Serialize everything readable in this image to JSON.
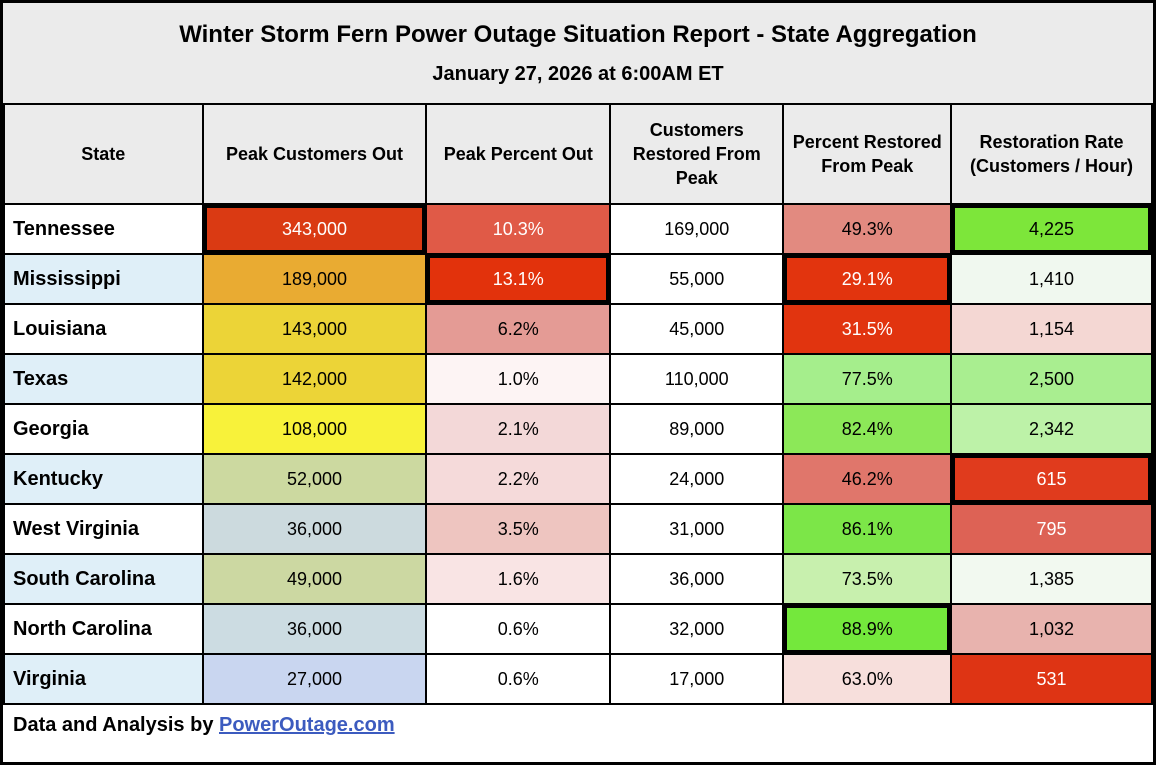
{
  "title": "Winter Storm Fern Power Outage Situation Report - State Aggregation",
  "subtitle": "January 27, 2026 at 6:00AM ET",
  "footer": {
    "prefix": "Data and Analysis by ",
    "link_text": "PowerOutage.com"
  },
  "colors": {
    "header_bg": "#ebebeb",
    "border": "#000000",
    "alt_state_row_bg": "#dfeff8",
    "link_blue": "#3c5bbf"
  },
  "chart_data": {
    "type": "table",
    "title": "Winter Storm Fern Power Outage Situation Report - State Aggregation",
    "subtitle": "January 27, 2026 at 6:00AM ET",
    "columns": [
      "State",
      "Peak Customers Out",
      "Peak Percent Out",
      "Customers Restored From Peak",
      "Percent Restored From Peak",
      "Restoration Rate (Customers / Hour)"
    ],
    "rows": [
      {
        "state": "Tennessee",
        "state_bg": "#ffffff",
        "cells": [
          {
            "v": "343,000",
            "bg": "#da3a13",
            "fg": "#ffffff",
            "hl": true
          },
          {
            "v": "10.3%",
            "bg": "#e05a47",
            "fg": "#ffffff",
            "hl": false
          },
          {
            "v": "169,000",
            "bg": "#ffffff",
            "fg": "#000000",
            "hl": false
          },
          {
            "v": "49.3%",
            "bg": "#e28a80",
            "fg": "#000000",
            "hl": false
          },
          {
            "v": "4,225",
            "bg": "#7de63a",
            "fg": "#000000",
            "hl": true
          }
        ]
      },
      {
        "state": "Mississippi",
        "state_bg": "#dfeff8",
        "cells": [
          {
            "v": "189,000",
            "bg": "#e9ab32",
            "fg": "#000000",
            "hl": false
          },
          {
            "v": "13.1%",
            "bg": "#e2320c",
            "fg": "#ffffff",
            "hl": true
          },
          {
            "v": "55,000",
            "bg": "#ffffff",
            "fg": "#000000",
            "hl": false
          },
          {
            "v": "29.1%",
            "bg": "#e2340e",
            "fg": "#ffffff",
            "hl": true
          },
          {
            "v": "1,410",
            "bg": "#f0f8ef",
            "fg": "#000000",
            "hl": false
          }
        ]
      },
      {
        "state": "Louisiana",
        "state_bg": "#ffffff",
        "cells": [
          {
            "v": "143,000",
            "bg": "#ecd437",
            "fg": "#000000",
            "hl": false
          },
          {
            "v": "6.2%",
            "bg": "#e49b95",
            "fg": "#000000",
            "hl": false
          },
          {
            "v": "45,000",
            "bg": "#ffffff",
            "fg": "#000000",
            "hl": false
          },
          {
            "v": "31.5%",
            "bg": "#e1340f",
            "fg": "#ffffff",
            "hl": false
          },
          {
            "v": "1,154",
            "bg": "#f4d7d3",
            "fg": "#000000",
            "hl": false
          }
        ]
      },
      {
        "state": "Texas",
        "state_bg": "#dfeff8",
        "cells": [
          {
            "v": "142,000",
            "bg": "#ecd437",
            "fg": "#000000",
            "hl": false
          },
          {
            "v": "1.0%",
            "bg": "#fdf4f4",
            "fg": "#000000",
            "hl": false
          },
          {
            "v": "110,000",
            "bg": "#ffffff",
            "fg": "#000000",
            "hl": false
          },
          {
            "v": "77.5%",
            "bg": "#a5ee8c",
            "fg": "#000000",
            "hl": false
          },
          {
            "v": "2,500",
            "bg": "#a9ee90",
            "fg": "#000000",
            "hl": false
          }
        ]
      },
      {
        "state": "Georgia",
        "state_bg": "#ffffff",
        "cells": [
          {
            "v": "108,000",
            "bg": "#f8f23a",
            "fg": "#000000",
            "hl": false
          },
          {
            "v": "2.1%",
            "bg": "#f3d8d8",
            "fg": "#000000",
            "hl": false
          },
          {
            "v": "89,000",
            "bg": "#ffffff",
            "fg": "#000000",
            "hl": false
          },
          {
            "v": "82.4%",
            "bg": "#8ce858",
            "fg": "#000000",
            "hl": false
          },
          {
            "v": "2,342",
            "bg": "#bdf2a8",
            "fg": "#000000",
            "hl": false
          }
        ]
      },
      {
        "state": "Kentucky",
        "state_bg": "#dfeff8",
        "cells": [
          {
            "v": "52,000",
            "bg": "#ccd9a0",
            "fg": "#000000",
            "hl": false
          },
          {
            "v": "2.2%",
            "bg": "#f5dada",
            "fg": "#000000",
            "hl": false
          },
          {
            "v": "24,000",
            "bg": "#ffffff",
            "fg": "#000000",
            "hl": false
          },
          {
            "v": "46.2%",
            "bg": "#e0766b",
            "fg": "#000000",
            "hl": false
          },
          {
            "v": "615",
            "bg": "#e03b1d",
            "fg": "#ffffff",
            "hl": true
          }
        ]
      },
      {
        "state": "West Virginia",
        "state_bg": "#ffffff",
        "cells": [
          {
            "v": "36,000",
            "bg": "#ccdade",
            "fg": "#000000",
            "hl": false
          },
          {
            "v": "3.5%",
            "bg": "#eec5c0",
            "fg": "#000000",
            "hl": false
          },
          {
            "v": "31,000",
            "bg": "#ffffff",
            "fg": "#000000",
            "hl": false
          },
          {
            "v": "86.1%",
            "bg": "#7ce648",
            "fg": "#000000",
            "hl": false
          },
          {
            "v": "795",
            "bg": "#dd6255",
            "fg": "#ffffff",
            "hl": false
          }
        ]
      },
      {
        "state": "South Carolina",
        "state_bg": "#dfeff8",
        "cells": [
          {
            "v": "49,000",
            "bg": "#ccd8a2",
            "fg": "#000000",
            "hl": false
          },
          {
            "v": "1.6%",
            "bg": "#f9e4e4",
            "fg": "#000000",
            "hl": false
          },
          {
            "v": "36,000",
            "bg": "#ffffff",
            "fg": "#000000",
            "hl": false
          },
          {
            "v": "73.5%",
            "bg": "#c8f0ae",
            "fg": "#000000",
            "hl": false
          },
          {
            "v": "1,385",
            "bg": "#f2f9f0",
            "fg": "#000000",
            "hl": false
          }
        ]
      },
      {
        "state": "North Carolina",
        "state_bg": "#ffffff",
        "cells": [
          {
            "v": "36,000",
            "bg": "#ccdce2",
            "fg": "#000000",
            "hl": false
          },
          {
            "v": "0.6%",
            "bg": "#ffffff",
            "fg": "#000000",
            "hl": false
          },
          {
            "v": "32,000",
            "bg": "#ffffff",
            "fg": "#000000",
            "hl": false
          },
          {
            "v": "88.9%",
            "bg": "#74e83c",
            "fg": "#000000",
            "hl": true
          },
          {
            "v": "1,032",
            "bg": "#e8b3ae",
            "fg": "#000000",
            "hl": false
          }
        ]
      },
      {
        "state": "Virginia",
        "state_bg": "#dfeff8",
        "cells": [
          {
            "v": "27,000",
            "bg": "#c9d6f0",
            "fg": "#000000",
            "hl": false
          },
          {
            "v": "0.6%",
            "bg": "#ffffff",
            "fg": "#000000",
            "hl": false
          },
          {
            "v": "17,000",
            "bg": "#ffffff",
            "fg": "#000000",
            "hl": false
          },
          {
            "v": "63.0%",
            "bg": "#f7dfdc",
            "fg": "#000000",
            "hl": false
          },
          {
            "v": "531",
            "bg": "#de3414",
            "fg": "#ffffff",
            "hl": false
          }
        ]
      }
    ]
  }
}
